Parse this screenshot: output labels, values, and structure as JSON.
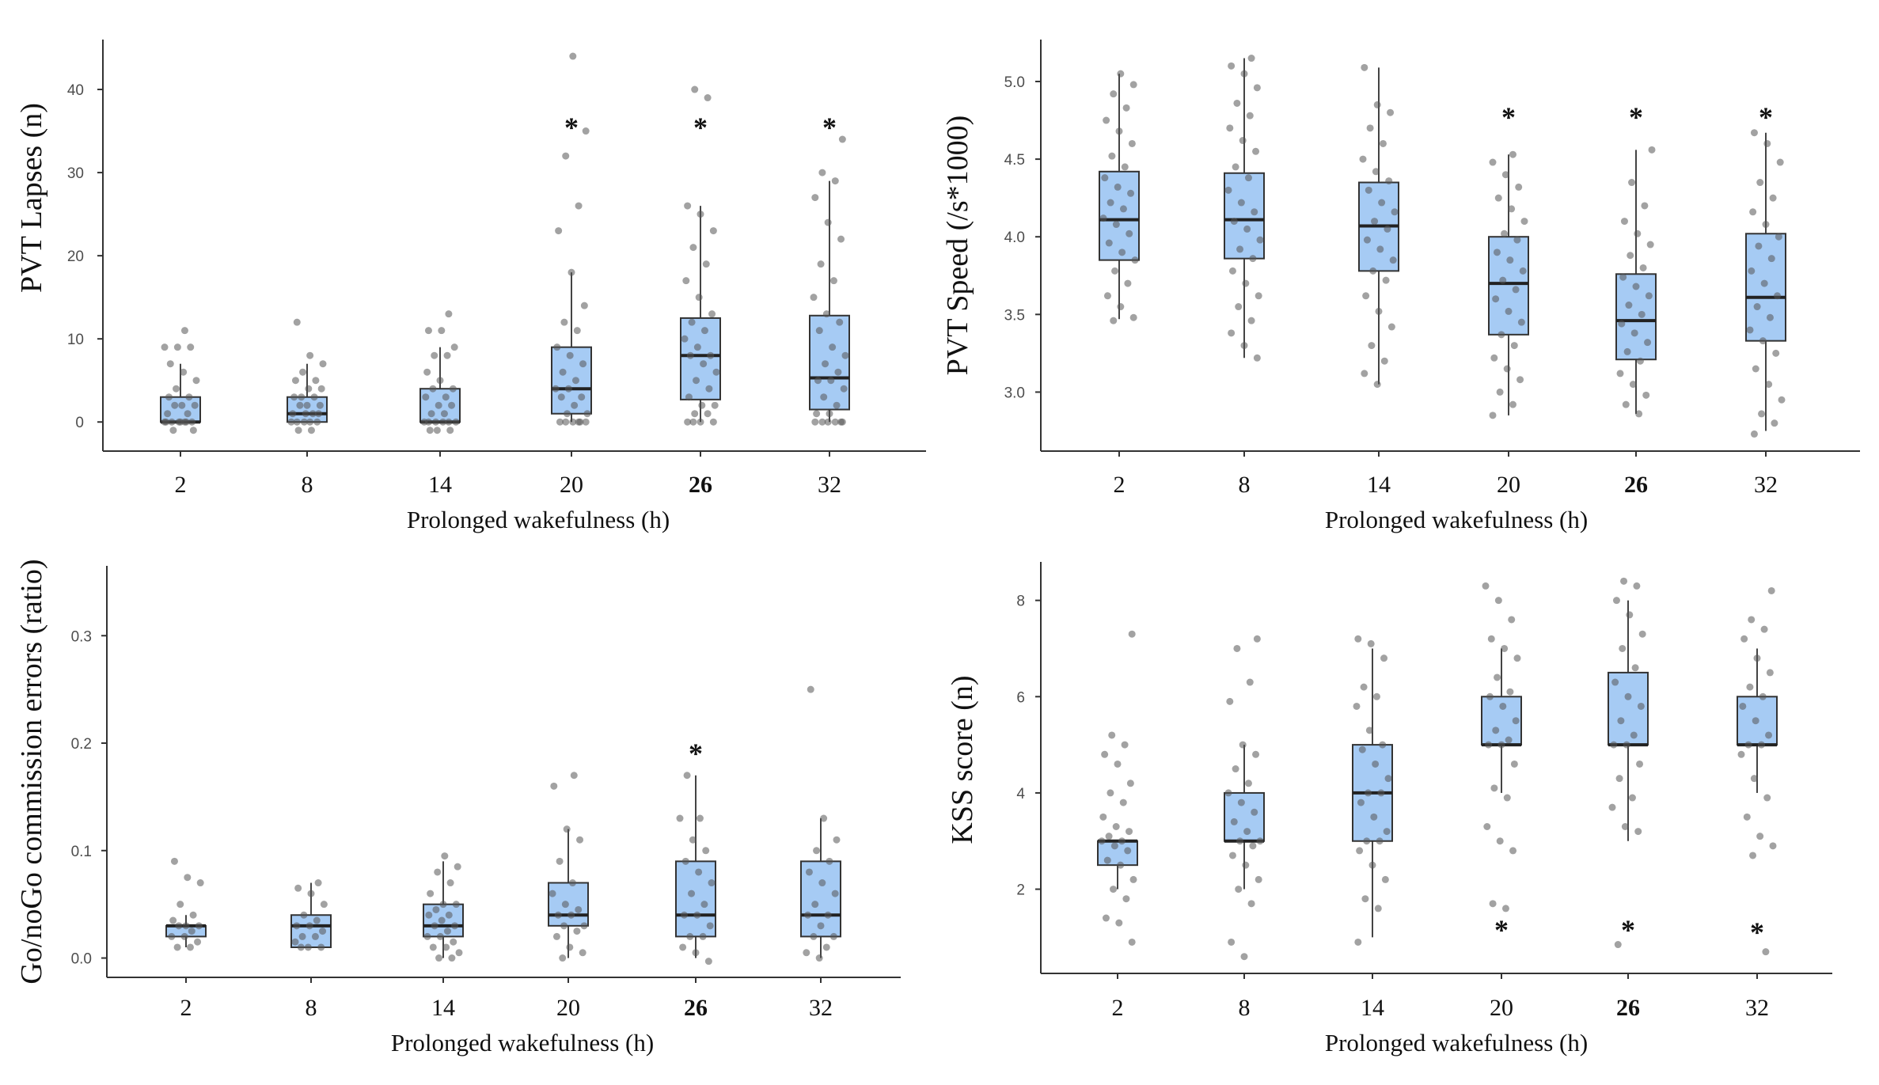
{
  "figure": {
    "background": "#ffffff",
    "box_fill": "#a6cbf4",
    "point_color": "#555555"
  },
  "chart_data": [
    {
      "id": "pvt-lapses",
      "type": "box",
      "ylabel": "PVT Lapses (n)",
      "xlabel": "Prolonged wakefulness  (h)",
      "categories": [
        "2",
        "8",
        "14",
        "20",
        "26",
        "32"
      ],
      "bold_category": "26",
      "ylim": [
        -3.5,
        46
      ],
      "yticks": [
        0,
        10,
        20,
        30,
        40
      ],
      "ytick_labels": [
        "0",
        "10",
        "20",
        "30",
        "40"
      ],
      "series": [
        {
          "cat": "2",
          "q1": 0,
          "median": 0,
          "q3": 3,
          "whisker_low": 0,
          "whisker_high": 7,
          "points": [
            0,
            0,
            0,
            0,
            0,
            0,
            0,
            -1,
            -1,
            0,
            1,
            1,
            2,
            2,
            2,
            3,
            3,
            4,
            5,
            6,
            7,
            9,
            9,
            9,
            11
          ]
        },
        {
          "cat": "8",
          "q1": 0,
          "median": 1,
          "q3": 3,
          "whisker_low": 0,
          "whisker_high": 7,
          "points": [
            0,
            0,
            0,
            0,
            0,
            -1,
            -1,
            1,
            1,
            1,
            1,
            2,
            2,
            2,
            3,
            3,
            3,
            4,
            4,
            5,
            5,
            6,
            7,
            8,
            12
          ]
        },
        {
          "cat": "14",
          "q1": 0,
          "median": 0,
          "q3": 4,
          "whisker_low": 0,
          "whisker_high": 9,
          "points": [
            0,
            0,
            0,
            0,
            0,
            -1,
            -1,
            -1,
            0,
            1,
            1,
            2,
            2,
            3,
            3,
            4,
            4,
            5,
            6,
            8,
            8,
            9,
            11,
            11,
            13
          ]
        },
        {
          "cat": "20",
          "q1": 1,
          "median": 4,
          "q3": 9,
          "whisker_low": 0,
          "whisker_high": 18,
          "points": [
            0,
            0,
            0,
            0,
            0,
            0,
            1,
            1,
            2,
            3,
            3,
            4,
            4,
            5,
            6,
            7,
            8,
            9,
            11,
            12,
            14,
            18,
            23,
            26,
            32,
            35,
            44
          ]
        },
        {
          "cat": "26",
          "q1": 2.7,
          "median": 8,
          "q3": 12.5,
          "whisker_low": 0,
          "whisker_high": 26,
          "points": [
            0,
            0,
            0,
            0,
            1,
            1,
            2,
            2,
            3,
            4,
            5,
            6,
            7,
            8,
            8,
            9,
            10,
            11,
            12,
            13,
            15,
            17,
            19,
            21,
            23,
            25,
            26,
            39,
            40
          ]
        },
        {
          "cat": "32",
          "q1": 1.5,
          "median": 5.3,
          "q3": 12.8,
          "whisker_low": 0,
          "whisker_high": 29,
          "points": [
            0,
            0,
            0,
            0,
            0,
            0,
            1,
            1,
            2,
            3,
            4,
            5,
            5,
            6,
            7,
            8,
            9,
            11,
            12,
            13,
            15,
            17,
            19,
            22,
            24,
            27,
            29,
            30,
            34
          ]
        }
      ],
      "annotations": [
        {
          "text": "*",
          "cat": "20",
          "y": 36
        },
        {
          "text": "*",
          "cat": "26",
          "y": 36
        },
        {
          "text": "*",
          "cat": "32",
          "y": 36
        }
      ]
    },
    {
      "id": "pvt-speed",
      "type": "box",
      "ylabel": "PVT Speed (/s*1000)",
      "xlabel": "Prolonged wakefulness  (h)",
      "categories": [
        "2",
        "8",
        "14",
        "20",
        "26",
        "32"
      ],
      "bold_category": "26",
      "ylim": [
        2.62,
        5.27
      ],
      "yticks": [
        3.0,
        3.5,
        4.0,
        4.5,
        5.0
      ],
      "ytick_labels": [
        "3.0",
        "3.5",
        "4.0",
        "4.5",
        "5.0"
      ],
      "series": [
        {
          "cat": "2",
          "q1": 3.85,
          "median": 4.11,
          "q3": 4.42,
          "whisker_low": 3.47,
          "whisker_high": 5.05,
          "points": [
            3.46,
            3.48,
            3.55,
            3.62,
            3.7,
            3.78,
            3.85,
            3.9,
            3.96,
            4.02,
            4.08,
            4.12,
            4.18,
            4.22,
            4.28,
            4.32,
            4.38,
            4.45,
            4.52,
            4.6,
            4.68,
            4.75,
            4.83,
            4.92,
            4.98,
            5.05
          ]
        },
        {
          "cat": "8",
          "q1": 3.86,
          "median": 4.11,
          "q3": 4.41,
          "whisker_low": 3.22,
          "whisker_high": 5.15,
          "points": [
            3.22,
            3.3,
            3.38,
            3.46,
            3.55,
            3.62,
            3.7,
            3.78,
            3.86,
            3.92,
            3.98,
            4.05,
            4.1,
            4.16,
            4.22,
            4.3,
            4.38,
            4.45,
            4.55,
            4.62,
            4.7,
            4.78,
            4.86,
            4.96,
            5.05,
            5.1,
            5.15
          ]
        },
        {
          "cat": "14",
          "q1": 3.78,
          "median": 4.07,
          "q3": 4.35,
          "whisker_low": 3.05,
          "whisker_high": 5.09,
          "points": [
            3.05,
            3.12,
            3.2,
            3.3,
            3.42,
            3.52,
            3.62,
            3.72,
            3.78,
            3.85,
            3.92,
            3.98,
            4.05,
            4.1,
            4.16,
            4.22,
            4.3,
            4.36,
            4.42,
            4.5,
            4.6,
            4.7,
            4.8,
            4.85,
            5.09
          ]
        },
        {
          "cat": "20",
          "q1": 3.37,
          "median": 3.7,
          "q3": 4.0,
          "whisker_low": 2.85,
          "whisker_high": 4.53,
          "points": [
            2.85,
            2.92,
            3.0,
            3.08,
            3.15,
            3.22,
            3.3,
            3.37,
            3.45,
            3.52,
            3.6,
            3.66,
            3.72,
            3.78,
            3.85,
            3.9,
            3.98,
            4.02,
            4.1,
            4.18,
            4.25,
            4.32,
            4.4,
            4.48,
            4.53
          ]
        },
        {
          "cat": "26",
          "q1": 3.21,
          "median": 3.46,
          "q3": 3.76,
          "whisker_low": 2.86,
          "whisker_high": 4.56,
          "points": [
            2.86,
            2.92,
            2.98,
            3.05,
            3.12,
            3.2,
            3.26,
            3.32,
            3.38,
            3.44,
            3.5,
            3.56,
            3.62,
            3.68,
            3.74,
            3.8,
            3.88,
            3.95,
            4.02,
            4.1,
            4.2,
            4.35,
            4.56
          ]
        },
        {
          "cat": "32",
          "q1": 3.33,
          "median": 3.61,
          "q3": 4.02,
          "whisker_low": 2.75,
          "whisker_high": 4.67,
          "points": [
            2.73,
            2.8,
            2.86,
            2.95,
            3.05,
            3.15,
            3.25,
            3.33,
            3.4,
            3.48,
            3.55,
            3.62,
            3.7,
            3.78,
            3.86,
            3.94,
            4.0,
            4.08,
            4.16,
            4.25,
            4.35,
            4.48,
            4.6,
            4.67
          ]
        }
      ],
      "annotations": [
        {
          "text": "*",
          "cat": "20",
          "y": 4.8
        },
        {
          "text": "*",
          "cat": "26",
          "y": 4.8
        },
        {
          "text": "*",
          "cat": "32",
          "y": 4.8
        }
      ]
    },
    {
      "id": "gonogo-errors",
      "type": "box",
      "ylabel": "Go/noGo commission errors (ratio)",
      "xlabel": "Prolonged wakefulness  (h)",
      "categories": [
        "2",
        "8",
        "14",
        "20",
        "26",
        "32"
      ],
      "bold_category": "26",
      "ylim": [
        -0.018,
        0.365
      ],
      "yticks": [
        0.0,
        0.1,
        0.2,
        0.3
      ],
      "ytick_labels": [
        "0.0",
        "0.1",
        "0.2",
        "0.3"
      ],
      "series": [
        {
          "cat": "2",
          "q1": 0.02,
          "median": 0.03,
          "q3": 0.03,
          "whisker_low": 0.01,
          "whisker_high": 0.04,
          "points": [
            0.01,
            0.01,
            0.015,
            0.02,
            0.02,
            0.025,
            0.03,
            0.03,
            0.03,
            0.035,
            0.04,
            0.05,
            0.07,
            0.075,
            0.09
          ]
        },
        {
          "cat": "8",
          "q1": 0.01,
          "median": 0.03,
          "q3": 0.04,
          "whisker_low": 0.01,
          "whisker_high": 0.07,
          "points": [
            0.01,
            0.01,
            0.01,
            0.015,
            0.02,
            0.02,
            0.025,
            0.03,
            0.03,
            0.035,
            0.04,
            0.05,
            0.06,
            0.065,
            0.07
          ]
        },
        {
          "cat": "14",
          "q1": 0.02,
          "median": 0.03,
          "q3": 0.05,
          "whisker_low": 0.0,
          "whisker_high": 0.09,
          "points": [
            0.0,
            0.0,
            0.005,
            0.01,
            0.01,
            0.015,
            0.02,
            0.02,
            0.025,
            0.03,
            0.03,
            0.035,
            0.04,
            0.04,
            0.045,
            0.05,
            0.05,
            0.06,
            0.07,
            0.08,
            0.085,
            0.095
          ]
        },
        {
          "cat": "20",
          "q1": 0.03,
          "median": 0.04,
          "q3": 0.07,
          "whisker_low": 0.0,
          "whisker_high": 0.12,
          "points": [
            0.0,
            0.005,
            0.01,
            0.02,
            0.025,
            0.03,
            0.03,
            0.04,
            0.04,
            0.045,
            0.05,
            0.06,
            0.07,
            0.09,
            0.11,
            0.12,
            0.16,
            0.17
          ]
        },
        {
          "cat": "26",
          "q1": 0.02,
          "median": 0.04,
          "q3": 0.09,
          "whisker_low": 0.0,
          "whisker_high": 0.17,
          "points": [
            -0.003,
            0.005,
            0.01,
            0.02,
            0.02,
            0.03,
            0.04,
            0.04,
            0.05,
            0.06,
            0.07,
            0.08,
            0.09,
            0.1,
            0.11,
            0.13,
            0.13,
            0.17
          ]
        },
        {
          "cat": "32",
          "q1": 0.02,
          "median": 0.04,
          "q3": 0.09,
          "whisker_low": 0.0,
          "whisker_high": 0.13,
          "points": [
            0.0,
            0.005,
            0.01,
            0.02,
            0.02,
            0.03,
            0.04,
            0.04,
            0.05,
            0.06,
            0.07,
            0.08,
            0.09,
            0.1,
            0.11,
            0.13,
            0.25
          ]
        }
      ],
      "annotations": [
        {
          "text": "*",
          "cat": "26",
          "y": 0.195
        }
      ]
    },
    {
      "id": "kss-score",
      "type": "box",
      "ylabel": "KSS score (n)",
      "xlabel": "Prolonged wakefulness  (h)",
      "categories": [
        "2",
        "8",
        "14",
        "20",
        "26",
        "32"
      ],
      "bold_category": "26",
      "ylim": [
        0.25,
        8.8
      ],
      "yticks": [
        2,
        4,
        6,
        8
      ],
      "ytick_labels": [
        "2",
        "4",
        "6",
        "8"
      ],
      "series": [
        {
          "cat": "2",
          "q1": 2.5,
          "median": 3.0,
          "q3": 3.0,
          "whisker_low": 2.0,
          "whisker_high": 3.0,
          "points": [
            0.9,
            1.3,
            1.4,
            1.8,
            2.0,
            2.2,
            2.5,
            2.6,
            2.8,
            2.9,
            3.0,
            3.0,
            3.1,
            3.2,
            3.3,
            3.5,
            3.8,
            4.0,
            4.2,
            4.6,
            4.8,
            5.0,
            5.2,
            7.3
          ]
        },
        {
          "cat": "8",
          "q1": 3.0,
          "median": 3.0,
          "q3": 4.0,
          "whisker_low": 2.0,
          "whisker_high": 5.0,
          "points": [
            0.6,
            0.9,
            1.7,
            2.0,
            2.2,
            2.5,
            2.7,
            2.9,
            3.0,
            3.0,
            3.2,
            3.4,
            3.6,
            3.8,
            4.0,
            4.2,
            4.5,
            4.8,
            5.0,
            5.9,
            6.3,
            7.0,
            7.2
          ]
        },
        {
          "cat": "14",
          "q1": 3.0,
          "median": 4.0,
          "q3": 5.0,
          "whisker_low": 1.0,
          "whisker_high": 7.0,
          "points": [
            0.9,
            1.6,
            1.8,
            2.2,
            2.5,
            2.8,
            3.0,
            3.0,
            3.2,
            3.5,
            3.8,
            4.0,
            4.0,
            4.3,
            4.6,
            4.9,
            5.0,
            5.3,
            5.8,
            6.0,
            6.2,
            6.8,
            7.1,
            7.2
          ]
        },
        {
          "cat": "20",
          "q1": 5.0,
          "median": 5.0,
          "q3": 6.0,
          "whisker_low": 4.0,
          "whisker_high": 7.0,
          "points": [
            1.6,
            1.7,
            2.8,
            3.0,
            3.3,
            3.9,
            4.1,
            4.6,
            5.0,
            5.0,
            5.1,
            5.3,
            5.5,
            5.8,
            6.0,
            6.1,
            6.4,
            6.8,
            7.0,
            7.2,
            7.6,
            8.0,
            8.3
          ]
        },
        {
          "cat": "26",
          "q1": 5.0,
          "median": 5.0,
          "q3": 6.5,
          "whisker_low": 3.0,
          "whisker_high": 8.0,
          "points": [
            0.85,
            3.2,
            3.3,
            3.7,
            3.9,
            4.3,
            4.6,
            5.0,
            5.0,
            5.2,
            5.5,
            5.8,
            6.0,
            6.3,
            6.6,
            7.0,
            7.3,
            7.7,
            8.0,
            8.3,
            8.4
          ]
        },
        {
          "cat": "32",
          "q1": 5.0,
          "median": 5.0,
          "q3": 6.0,
          "whisker_low": 4.0,
          "whisker_high": 7.0,
          "points": [
            0.7,
            2.7,
            2.9,
            3.1,
            3.5,
            3.9,
            4.3,
            4.8,
            5.0,
            5.0,
            5.2,
            5.5,
            5.8,
            6.0,
            6.2,
            6.5,
            6.8,
            7.2,
            7.4,
            7.6,
            8.2
          ]
        }
      ],
      "annotations": [
        {
          "text": "*",
          "cat": "20",
          "y": 1.25
        },
        {
          "text": "*",
          "cat": "26",
          "y": 1.25
        },
        {
          "text": "*",
          "cat": "32",
          "y": 1.2
        }
      ]
    }
  ]
}
